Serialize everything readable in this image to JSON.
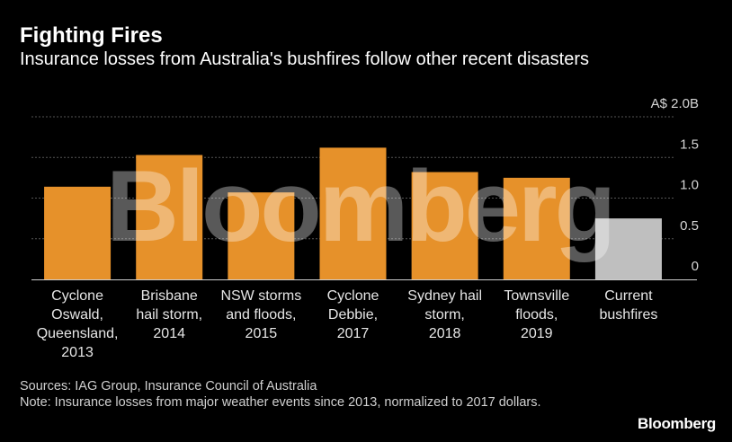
{
  "title": "Fighting Fires",
  "subtitle": "Insurance losses from Australia's bushfires follow other recent disasters",
  "chart_data": {
    "type": "bar",
    "categories": [
      [
        "Cyclone",
        "Oswald,",
        "Queensland,",
        "2013"
      ],
      [
        "Brisbane",
        "hail storm,",
        "2014"
      ],
      [
        "NSW storms",
        "and floods,",
        "2015"
      ],
      [
        "Cyclone",
        "Debbie,",
        "2017"
      ],
      [
        "Sydney hail",
        "storm,",
        "2018"
      ],
      [
        "Townsville",
        "floods,",
        "2019"
      ],
      [
        "Current",
        "bushfires"
      ]
    ],
    "values": [
      1.14,
      1.53,
      1.07,
      1.62,
      1.32,
      1.25,
      0.75
    ],
    "bar_colors": [
      "#e6912a",
      "#e6912a",
      "#e6912a",
      "#e6912a",
      "#e6912a",
      "#e6912a",
      "#bfbfbf"
    ],
    "ylim": [
      0,
      2.0
    ],
    "yticks": [
      0,
      0.5,
      1.0,
      1.5,
      2.0
    ],
    "ytick_labels": [
      "0",
      "0.5",
      "1.0",
      "1.5",
      "A$ 2.0B"
    ],
    "ylabel": "",
    "xlabel": "",
    "grid": true,
    "watermark": "Bloomberg"
  },
  "footer": {
    "sources": "Sources: IAG Group, Insurance Council of Australia",
    "note": "Note: Insurance losses from major weather events since 2013, normalized to 2017 dollars."
  },
  "logo": "Bloomberg",
  "colors": {
    "background": "#000000",
    "bar": "#e6912a",
    "highlight_bar": "#bfbfbf",
    "grid": "#555555"
  }
}
